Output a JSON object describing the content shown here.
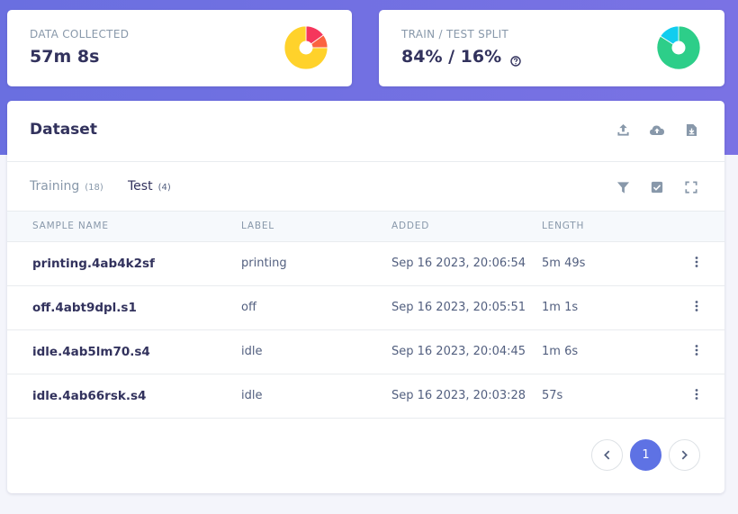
{
  "stats": {
    "data_collected": {
      "label": "DATA COLLECTED",
      "value": "57m 8s",
      "chart": {
        "type": "pie",
        "slices": [
          {
            "value": 0.15,
            "color": "#f5365c"
          },
          {
            "value": 0.1,
            "color": "#fb6340"
          },
          {
            "value": 0.75,
            "color": "#ffd22b"
          }
        ]
      }
    },
    "train_test_split": {
      "label": "TRAIN / TEST SPLIT",
      "value": "84% / 16%",
      "chart": {
        "type": "pie",
        "slices": [
          {
            "value": 0.84,
            "color": "#2dce89"
          },
          {
            "value": 0.16,
            "color": "#11cdef"
          }
        ]
      }
    }
  },
  "dataset": {
    "title": "Dataset",
    "tabs": [
      {
        "label": "Training",
        "count": "(18)"
      },
      {
        "label": "Test",
        "count": "(4)"
      }
    ],
    "columns": [
      "SAMPLE NAME",
      "LABEL",
      "ADDED",
      "LENGTH"
    ],
    "rows": [
      {
        "name": "printing.4ab4k2sf",
        "label": "printing",
        "added": "Sep 16 2023, 20:06:54",
        "length": "5m 49s"
      },
      {
        "name": "off.4abt9dpl.s1",
        "label": "off",
        "added": "Sep 16 2023, 20:05:51",
        "length": "1m 1s"
      },
      {
        "name": "idle.4ab5lm70.s4",
        "label": "idle",
        "added": "Sep 16 2023, 20:04:45",
        "length": "1m 6s"
      },
      {
        "name": "idle.4ab66rsk.s4",
        "label": "idle",
        "added": "Sep 16 2023, 20:03:28",
        "length": "57s"
      }
    ],
    "pagination": {
      "current_page": "1"
    }
  },
  "icons": {
    "upload": "upload-icon",
    "cloud_upload": "cloud-upload-icon",
    "download": "download-icon",
    "filter": "filter-icon",
    "select": "checkbox-icon",
    "fullscreen": "fullscreen-icon",
    "more": "more-vertical-icon"
  },
  "colors": {
    "accent": "#5e72e4",
    "hero_background": "#6a6fe0"
  }
}
